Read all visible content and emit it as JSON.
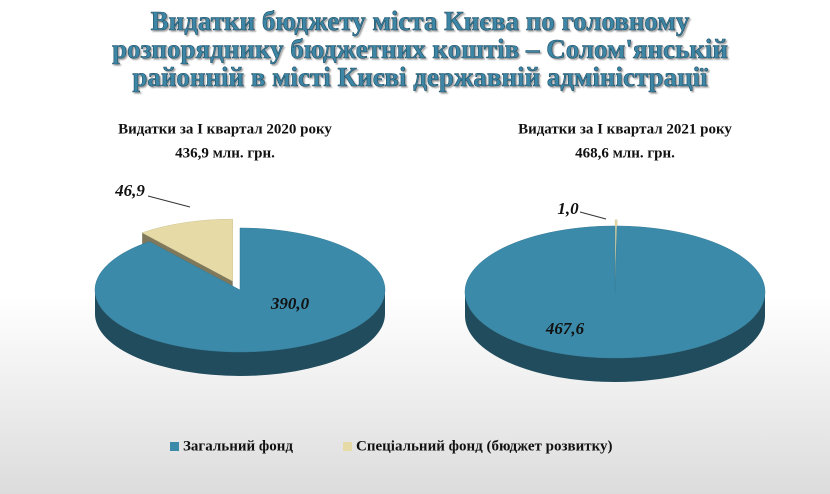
{
  "title_lines": [
    "Видатки бюджету міста Києва по головному",
    "розпоряднику бюджетних коштів – Солом'янській",
    "районній в місті Києві державній адміністрації"
  ],
  "chart_data": [
    {
      "type": "pie",
      "title": "Видатки за I квартал 2020 року",
      "subtitle": "436,9 млн. грн.",
      "categories": [
        "Загальний фонд",
        "Спеціальний фонд (бюджет розвитку)"
      ],
      "values": [
        390.0,
        46.9
      ],
      "value_labels": [
        "390,0",
        "46,9"
      ],
      "colors": [
        "#3b8aa9",
        "#e6dba6"
      ]
    },
    {
      "type": "pie",
      "title": "Видатки за I квартал 2021 року",
      "subtitle": "468,6 млн. грн.",
      "categories": [
        "Загальний фонд",
        "Спеціальний фонд (бюджет розвитку)"
      ],
      "values": [
        467.6,
        1.0
      ],
      "value_labels": [
        "467,6",
        "1,0"
      ],
      "colors": [
        "#3b8aa9",
        "#e6dba6"
      ]
    }
  ]
}
